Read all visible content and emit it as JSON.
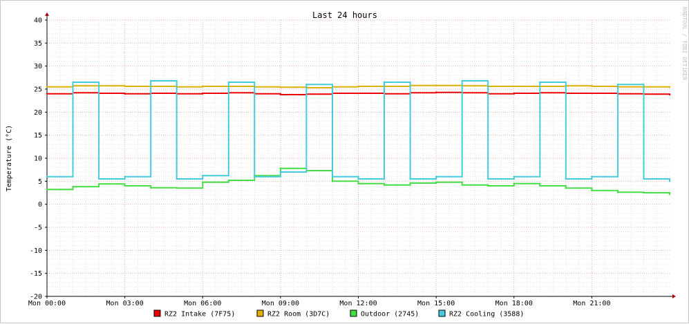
{
  "chart_data": {
    "type": "line",
    "title": "Last 24 hours",
    "ylabel": "Temperature (°C)",
    "xlabel": "",
    "watermark": "RRDTOOL / TOBI OETIKER",
    "ylim": [
      -20,
      40
    ],
    "yticks": [
      40,
      35,
      30,
      25,
      20,
      15,
      10,
      5,
      0,
      -5,
      -10,
      -15,
      -20
    ],
    "xlim": [
      0,
      24
    ],
    "xticks": [
      {
        "hour": 0,
        "label": "Mon 00:00"
      },
      {
        "hour": 3,
        "label": "Mon 03:00"
      },
      {
        "hour": 6,
        "label": "Mon 06:00"
      },
      {
        "hour": 9,
        "label": "Mon 09:00"
      },
      {
        "hour": 12,
        "label": "Mon 12:00"
      },
      {
        "hour": 15,
        "label": "Mon 15:00"
      },
      {
        "hour": 18,
        "label": "Mon 18:00"
      },
      {
        "hour": 21,
        "label": "Mon 21:00"
      }
    ],
    "grid": true,
    "legend_position": "bottom",
    "series": [
      {
        "name": "RZ2 Intake (7F75)",
        "color": "#ee0000",
        "x": [
          0,
          1,
          2,
          3,
          4,
          5,
          6,
          7,
          8,
          9,
          10,
          11,
          12,
          13,
          14,
          15,
          16,
          17,
          18,
          19,
          20,
          21,
          22,
          23,
          24
        ],
        "y": [
          24.0,
          24.2,
          24.1,
          24.0,
          24.1,
          24.0,
          24.1,
          24.2,
          24.0,
          23.8,
          23.9,
          24.1,
          24.1,
          24.0,
          24.2,
          24.3,
          24.2,
          24.0,
          24.1,
          24.2,
          24.1,
          24.1,
          24.0,
          23.9,
          23.8
        ]
      },
      {
        "name": "RZ2 Room (3D7C)",
        "color": "#e0b000",
        "x": [
          0,
          1,
          2,
          3,
          4,
          5,
          6,
          7,
          8,
          9,
          10,
          11,
          12,
          13,
          14,
          15,
          16,
          17,
          18,
          19,
          20,
          21,
          22,
          23,
          24
        ],
        "y": [
          25.5,
          25.7,
          25.7,
          25.6,
          25.6,
          25.5,
          25.6,
          25.6,
          25.5,
          25.4,
          25.3,
          25.5,
          25.6,
          25.6,
          25.8,
          25.8,
          25.7,
          25.6,
          25.6,
          25.6,
          25.7,
          25.6,
          25.5,
          25.5,
          25.4
        ]
      },
      {
        "name": "Outdoor (2745)",
        "color": "#44dd44",
        "x": [
          0,
          1,
          2,
          3,
          4,
          5,
          6,
          7,
          8,
          9,
          10,
          11,
          12,
          13,
          14,
          15,
          16,
          17,
          18,
          19,
          20,
          21,
          22,
          23,
          24
        ],
        "y": [
          3.2,
          3.8,
          4.4,
          4.0,
          3.6,
          3.5,
          4.8,
          5.2,
          6.2,
          7.8,
          7.3,
          5.0,
          4.5,
          4.2,
          4.6,
          4.8,
          4.2,
          4.0,
          4.5,
          4.0,
          3.5,
          3.0,
          2.6,
          2.5,
          2.2
        ]
      },
      {
        "name": "RZ2 Cooling (3588)",
        "color": "#44ccdd",
        "x": [
          0,
          1,
          2,
          3,
          4,
          5,
          6,
          7,
          8,
          9,
          10,
          11,
          12,
          13,
          14,
          15,
          16,
          17,
          18,
          19,
          20,
          21,
          22,
          23,
          24
        ],
        "y": [
          6.0,
          26.5,
          5.5,
          6.0,
          26.8,
          5.5,
          6.2,
          26.5,
          6.0,
          7.0,
          26.0,
          6.0,
          5.5,
          26.5,
          5.5,
          6.0,
          26.8,
          5.5,
          6.0,
          26.5,
          5.5,
          6.0,
          26.0,
          5.5,
          5.0
        ]
      }
    ]
  }
}
